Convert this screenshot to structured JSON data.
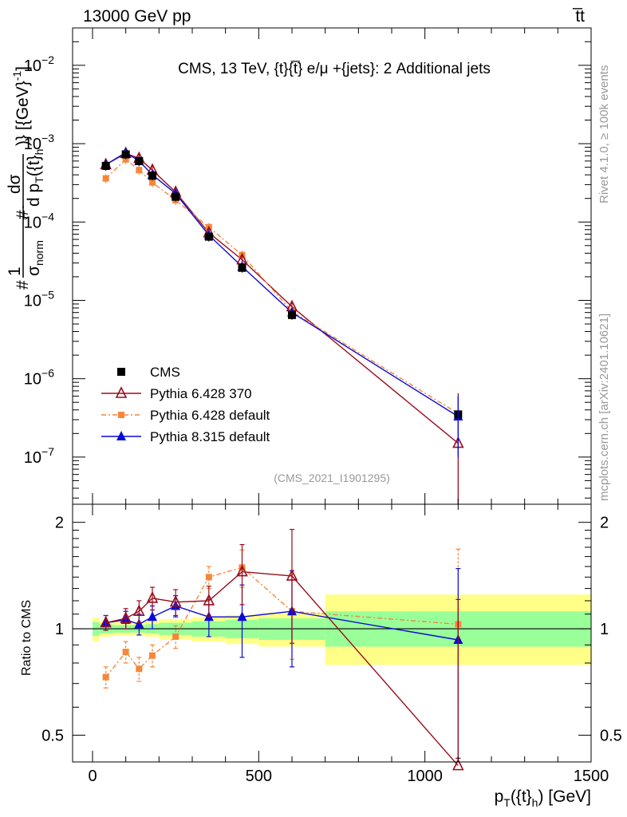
{
  "header": {
    "left": "13000 GeV pp",
    "right": "t̅t"
  },
  "side_labels": {
    "rivet": "Rivet 4.1.0, ≥ 100k events",
    "mcplots": "mcplots.cern.ch [arXiv:2401.10621]"
  },
  "watermark": "(CMS_2021_I1901295)",
  "colors": {
    "cms": "#000000",
    "py6_370": "#9a0e1c",
    "py6_default": "#f5873a",
    "py8": "#0a0ad8",
    "band_outer": "#ffff88",
    "band_inner": "#99ff99"
  },
  "chart_data": [
    {
      "id": "main",
      "type": "line",
      "title": "CMS, 13 TeV, {t}{t̅} e/μ +{jets}: 2 Additional jets",
      "ylabel": "#1/σnorm #dσ/d p_T({t}_h)} [{GeV}^-1]",
      "ylabel_parts": {
        "hash1": "#",
        "one": "1",
        "sigma": "σ",
        "norm": "norm",
        "hash2": "#",
        "dsig": "dσ",
        "dpt": "d p",
        "T": "T",
        "arg": "({t}",
        "h": "h",
        "close": ")} [{GeV}",
        "exp": "-1",
        "end": "]"
      },
      "yscale": "log",
      "xlim": [
        -60,
        1500
      ],
      "ylim": [
        2.5e-08,
        0.03
      ],
      "yticks": [
        {
          "value": 1e-07,
          "base": "10",
          "exp": "−7"
        },
        {
          "value": 1e-06,
          "base": "10",
          "exp": "−6"
        },
        {
          "value": 1e-05,
          "base": "10",
          "exp": "−5"
        },
        {
          "value": 0.0001,
          "base": "10",
          "exp": "−4"
        },
        {
          "value": 0.001,
          "base": "10",
          "exp": "−3"
        },
        {
          "value": 0.01,
          "base": "10",
          "exp": "−2"
        }
      ],
      "legend": [
        {
          "key": "cms",
          "label": "CMS"
        },
        {
          "key": "py6_370",
          "label": "Pythia 6.428 370"
        },
        {
          "key": "py6_default",
          "label": "Pythia 6.428 default"
        },
        {
          "key": "py8",
          "label": "Pythia 8.315 default"
        }
      ],
      "series": [
        {
          "key": "cms",
          "name": "CMS",
          "x": [
            40,
            100,
            140,
            180,
            250,
            350,
            450,
            600,
            1100
          ],
          "y": [
            0.00052,
            0.00073,
            0.0006,
            0.00039,
            0.00021,
            6.5e-05,
            2.6e-05,
            6.5e-06,
            3.5e-07
          ]
        },
        {
          "key": "py6_370",
          "name": "Pythia 6.428 370",
          "x": [
            40,
            100,
            140,
            180,
            250,
            350,
            450,
            600,
            1100
          ],
          "y": [
            0.00054,
            0.00075,
            0.00065,
            0.00046,
            0.00024,
            7.3e-05,
            3.3e-05,
            8.3e-06,
            1.5e-07
          ]
        },
        {
          "key": "py6_default",
          "name": "Pythia 6.428 default",
          "x": [
            40,
            100,
            140,
            180,
            250,
            350,
            450,
            600,
            1100
          ],
          "y": [
            0.00036,
            0.00063,
            0.00046,
            0.00032,
            0.00019,
            8.6e-05,
            3.8e-05,
            7.2e-06,
            3.6e-07
          ]
        },
        {
          "key": "py8",
          "name": "Pythia 8.315 default",
          "x": [
            40,
            100,
            140,
            180,
            250,
            350,
            450,
            600,
            1100
          ],
          "y": [
            0.00054,
            0.00077,
            0.0006,
            0.0004,
            0.00023,
            6.8e-05,
            2.7e-05,
            7e-06,
            3.3e-07
          ]
        }
      ]
    },
    {
      "id": "ratio",
      "type": "line",
      "ylabel": "Ratio to CMS",
      "xlabel": "p_T({t}_h) [GeV]",
      "xlabel_parts": {
        "p": "p",
        "T": "T",
        "arg": "({t}",
        "h": "h",
        "close": ") [GeV]"
      },
      "xlim": [
        -60,
        1500
      ],
      "ylim": [
        0.42,
        2.25
      ],
      "xticks": [
        0,
        500,
        1000,
        1500
      ],
      "yticks": [
        0.5,
        1,
        2
      ],
      "bands": [
        {
          "x": [
            0,
            20
          ],
          "inner": [
            0.955,
            1.045
          ],
          "outer": [
            0.92,
            1.075
          ]
        },
        {
          "x": [
            20,
            60
          ],
          "inner": [
            0.97,
            1.03
          ],
          "outer": [
            0.95,
            1.05
          ]
        },
        {
          "x": [
            60,
            120
          ],
          "inner": [
            0.975,
            1.025
          ],
          "outer": [
            0.955,
            1.045
          ]
        },
        {
          "x": [
            120,
            160
          ],
          "inner": [
            0.975,
            1.025
          ],
          "outer": [
            0.955,
            1.045
          ]
        },
        {
          "x": [
            160,
            200
          ],
          "inner": [
            0.97,
            1.03
          ],
          "outer": [
            0.95,
            1.05
          ]
        },
        {
          "x": [
            200,
            300
          ],
          "inner": [
            0.96,
            1.04
          ],
          "outer": [
            0.935,
            1.065
          ]
        },
        {
          "x": [
            300,
            400
          ],
          "inner": [
            0.95,
            1.05
          ],
          "outer": [
            0.92,
            1.08
          ]
        },
        {
          "x": [
            400,
            500
          ],
          "inner": [
            0.94,
            1.06
          ],
          "outer": [
            0.905,
            1.095
          ]
        },
        {
          "x": [
            500,
            700
          ],
          "inner": [
            0.93,
            1.07
          ],
          "outer": [
            0.89,
            1.11
          ]
        },
        {
          "x": [
            700,
            1500
          ],
          "inner": [
            0.89,
            1.12
          ],
          "outer": [
            0.79,
            1.25
          ]
        }
      ],
      "series": [
        {
          "key": "py6_370",
          "name": "Pythia 6.428 370",
          "x": [
            40,
            100,
            140,
            180,
            250,
            350,
            450,
            600,
            1100
          ],
          "y": [
            1.04,
            1.07,
            1.12,
            1.22,
            1.19,
            1.2,
            1.45,
            1.41,
            0.41
          ],
          "err": [
            0.05,
            0.07,
            0.08,
            0.09,
            0.1,
            0.12,
            0.28,
            0.5,
            0.8
          ]
        },
        {
          "key": "py6_default",
          "name": "Pythia 6.428 default",
          "x": [
            40,
            100,
            140,
            180,
            250,
            350,
            450,
            600,
            1100
          ],
          "y": [
            0.73,
            0.86,
            0.77,
            0.84,
            0.95,
            1.4,
            1.49,
            1.12,
            1.03
          ],
          "err": [
            0.05,
            0.06,
            0.06,
            0.06,
            0.07,
            0.1,
            0.18,
            0.3,
            0.65
          ]
        },
        {
          "key": "py8",
          "name": "Pythia 8.315 default",
          "x": [
            40,
            100,
            140,
            180,
            250,
            350,
            450,
            600,
            1100
          ],
          "y": [
            1.04,
            1.06,
            1.03,
            1.08,
            1.16,
            1.08,
            1.08,
            1.12,
            0.93
          ],
          "err": [
            0.05,
            0.06,
            0.07,
            0.08,
            0.08,
            0.13,
            0.25,
            0.34,
            0.55
          ]
        }
      ]
    }
  ]
}
